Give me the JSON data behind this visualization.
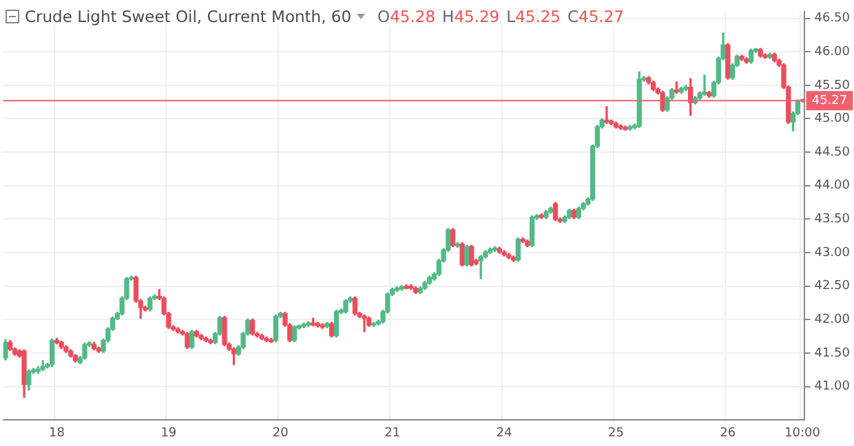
{
  "chart_data": {
    "type": "candlestick",
    "title": "Crude Light Sweet Oil, Current Month, 60",
    "annotations": [
      "O45.28",
      "H45.29",
      "L45.25",
      "C45.27"
    ],
    "categories": [
      null,
      null,
      null,
      null,
      null,
      null,
      null,
      null,
      null,
      null,
      null,
      "18",
      null,
      null,
      null,
      null,
      null,
      null,
      null,
      null,
      null,
      null,
      null,
      null,
      null,
      null,
      null,
      null,
      null,
      null,
      null,
      null,
      null,
      null,
      null,
      "19",
      null,
      null,
      null,
      null,
      null,
      null,
      null,
      null,
      null,
      null,
      null,
      null,
      null,
      null,
      null,
      null,
      null,
      null,
      null,
      null,
      null,
      null,
      null,
      "20",
      null,
      null,
      null,
      null,
      null,
      null,
      null,
      null,
      null,
      null,
      null,
      null,
      null,
      null,
      null,
      null,
      null,
      null,
      null,
      null,
      null,
      null,
      null,
      "21",
      null,
      null,
      null,
      null,
      null,
      null,
      null,
      null,
      null,
      null,
      null,
      null,
      null,
      null,
      null,
      null,
      null,
      null,
      null,
      null,
      null,
      null,
      null,
      "24",
      null,
      null,
      null,
      null,
      null,
      null,
      null,
      null,
      null,
      null,
      null,
      null,
      null,
      null,
      null,
      null,
      null,
      null,
      null,
      null,
      null,
      null,
      null,
      "25",
      null,
      null,
      null,
      null,
      null,
      null,
      null,
      null,
      null,
      null,
      null,
      null,
      null,
      null,
      null,
      null,
      null,
      null,
      null,
      null,
      null,
      null,
      null,
      "26",
      null,
      null,
      null,
      null,
      null,
      null,
      null,
      null,
      null,
      null,
      null,
      null,
      null,
      null,
      null,
      "10:00"
    ],
    "ohlc": [
      [
        41.43,
        41.7,
        41.4,
        41.66
      ],
      [
        41.66,
        41.69,
        41.54,
        41.56
      ],
      [
        41.56,
        41.58,
        41.47,
        41.49
      ],
      [
        41.53,
        41.55,
        41.44,
        41.46
      ],
      [
        41.53,
        41.55,
        40.84,
        41.03
      ],
      [
        41.03,
        41.25,
        40.95,
        41.23
      ],
      [
        41.22,
        41.27,
        41.2,
        41.25
      ],
      [
        41.23,
        41.3,
        41.2,
        41.26
      ],
      [
        41.26,
        41.39,
        41.24,
        41.3
      ],
      [
        41.3,
        41.35,
        41.28,
        41.33
      ],
      [
        41.33,
        41.71,
        41.3,
        41.69
      ],
      [
        41.69,
        41.72,
        41.64,
        41.66
      ],
      [
        41.66,
        41.68,
        41.57,
        41.59
      ],
      [
        41.59,
        41.61,
        41.51,
        41.53
      ],
      [
        41.53,
        41.55,
        41.44,
        41.46
      ],
      [
        41.46,
        41.48,
        41.37,
        41.39
      ],
      [
        41.36,
        41.45,
        41.34,
        41.43
      ],
      [
        41.43,
        41.65,
        41.41,
        41.63
      ],
      [
        41.62,
        41.67,
        41.6,
        41.65
      ],
      [
        41.63,
        41.66,
        41.55,
        41.57
      ],
      [
        41.57,
        41.59,
        41.51,
        41.53
      ],
      [
        41.53,
        41.71,
        41.51,
        41.69
      ],
      [
        41.69,
        41.88,
        41.67,
        41.86
      ],
      [
        41.86,
        42.04,
        41.84,
        42.02
      ],
      [
        42.02,
        42.11,
        42.0,
        42.09
      ],
      [
        42.09,
        42.34,
        42.07,
        42.32
      ],
      [
        42.32,
        42.63,
        42.3,
        42.61
      ],
      [
        42.61,
        42.65,
        42.59,
        42.63
      ],
      [
        42.63,
        42.65,
        42.26,
        42.28
      ],
      [
        42.28,
        42.3,
        42.02,
        42.18
      ],
      [
        42.18,
        42.2,
        42.13,
        42.15
      ],
      [
        42.15,
        42.34,
        42.13,
        42.32
      ],
      [
        42.32,
        42.37,
        42.3,
        42.35
      ],
      [
        42.35,
        42.45,
        42.3,
        42.32
      ],
      [
        42.32,
        42.34,
        42.07,
        42.09
      ],
      [
        42.09,
        42.11,
        41.87,
        41.89
      ],
      [
        41.89,
        41.91,
        41.84,
        41.86
      ],
      [
        41.86,
        41.88,
        41.8,
        41.82
      ],
      [
        41.82,
        41.84,
        41.77,
        41.79
      ],
      [
        41.79,
        41.81,
        41.57,
        41.59
      ],
      [
        41.59,
        41.84,
        41.57,
        41.82
      ],
      [
        41.82,
        41.84,
        41.74,
        41.76
      ],
      [
        41.76,
        41.78,
        41.7,
        41.72
      ],
      [
        41.72,
        41.74,
        41.67,
        41.69
      ],
      [
        41.69,
        41.71,
        41.64,
        41.66
      ],
      [
        41.66,
        41.81,
        41.64,
        41.79
      ],
      [
        41.79,
        42.05,
        41.77,
        42.03
      ],
      [
        42.03,
        42.05,
        41.61,
        41.63
      ],
      [
        41.63,
        41.65,
        41.54,
        41.56
      ],
      [
        41.56,
        41.58,
        41.33,
        41.49
      ],
      [
        41.49,
        41.61,
        41.47,
        41.59
      ],
      [
        41.59,
        41.81,
        41.57,
        41.79
      ],
      [
        41.79,
        42.01,
        41.77,
        41.99
      ],
      [
        41.99,
        42.01,
        41.77,
        41.79
      ],
      [
        41.79,
        41.81,
        41.74,
        41.76
      ],
      [
        41.76,
        41.78,
        41.7,
        41.72
      ],
      [
        41.72,
        41.74,
        41.67,
        41.69
      ],
      [
        41.7,
        41.72,
        41.66,
        41.67
      ],
      [
        41.69,
        42.07,
        41.67,
        42.05
      ],
      [
        42.05,
        42.11,
        42.03,
        42.09
      ],
      [
        42.09,
        42.11,
        41.9,
        41.92
      ],
      [
        41.92,
        41.94,
        41.67,
        41.69
      ],
      [
        41.69,
        41.91,
        41.67,
        41.89
      ],
      [
        41.88,
        41.92,
        41.86,
        41.91
      ],
      [
        41.9,
        41.95,
        41.88,
        41.93
      ],
      [
        41.92,
        41.97,
        41.9,
        41.95
      ],
      [
        41.95,
        42.02,
        41.91,
        41.92
      ],
      [
        41.94,
        41.96,
        41.89,
        41.91
      ],
      [
        41.92,
        41.94,
        41.87,
        41.89
      ],
      [
        41.9,
        41.96,
        41.88,
        41.94
      ],
      [
        41.94,
        41.96,
        41.74,
        41.76
      ],
      [
        41.76,
        42.14,
        41.74,
        42.12
      ],
      [
        42.11,
        42.16,
        42.09,
        42.14
      ],
      [
        42.12,
        42.3,
        42.1,
        42.28
      ],
      [
        42.28,
        42.34,
        42.26,
        42.32
      ],
      [
        42.32,
        42.34,
        42.07,
        42.09
      ],
      [
        42.09,
        42.11,
        42.03,
        42.05
      ],
      [
        42.05,
        42.07,
        41.82,
        42.02
      ],
      [
        42.02,
        42.04,
        41.9,
        41.92
      ],
      [
        41.92,
        41.96,
        41.9,
        41.94
      ],
      [
        41.94,
        41.99,
        41.92,
        41.97
      ],
      [
        41.97,
        42.14,
        41.95,
        42.12
      ],
      [
        42.12,
        42.4,
        42.1,
        42.38
      ],
      [
        42.38,
        42.47,
        42.36,
        42.45
      ],
      [
        42.44,
        42.49,
        42.42,
        42.47
      ],
      [
        42.46,
        42.51,
        42.44,
        42.49
      ],
      [
        42.5,
        42.52,
        42.46,
        42.47
      ],
      [
        42.5,
        42.52,
        42.45,
        42.47
      ],
      [
        42.47,
        42.49,
        42.39,
        42.41
      ],
      [
        42.41,
        42.49,
        42.39,
        42.47
      ],
      [
        42.47,
        42.57,
        42.45,
        42.55
      ],
      [
        42.55,
        42.65,
        42.53,
        42.63
      ],
      [
        42.61,
        42.7,
        42.59,
        42.68
      ],
      [
        42.68,
        42.9,
        42.66,
        42.88
      ],
      [
        42.88,
        43.06,
        42.86,
        43.04
      ],
      [
        43.04,
        43.36,
        43.02,
        43.34
      ],
      [
        43.34,
        43.36,
        43.09,
        43.11
      ],
      [
        43.1,
        43.15,
        43.08,
        43.13
      ],
      [
        43.13,
        43.15,
        42.8,
        42.82
      ],
      [
        42.82,
        43.11,
        42.8,
        43.09
      ],
      [
        43.09,
        43.11,
        42.8,
        42.82
      ],
      [
        42.88,
        42.9,
        42.82,
        42.84
      ],
      [
        42.88,
        42.96,
        42.61,
        42.94
      ],
      [
        42.94,
        43.03,
        42.92,
        43.01
      ],
      [
        43.01,
        43.07,
        42.99,
        43.05
      ],
      [
        43.04,
        43.09,
        43.02,
        43.07
      ],
      [
        43.06,
        43.08,
        42.99,
        43.01
      ],
      [
        43.01,
        43.03,
        42.95,
        42.97
      ],
      [
        42.97,
        42.99,
        42.91,
        42.93
      ],
      [
        42.93,
        42.95,
        42.87,
        42.89
      ],
      [
        42.89,
        43.22,
        42.87,
        43.2
      ],
      [
        43.2,
        43.22,
        43.15,
        43.17
      ],
      [
        43.17,
        43.19,
        43.09,
        43.11
      ],
      [
        43.11,
        43.55,
        43.09,
        43.53
      ],
      [
        43.52,
        43.57,
        43.5,
        43.55
      ],
      [
        43.56,
        43.58,
        43.51,
        43.53
      ],
      [
        43.53,
        43.63,
        43.51,
        43.61
      ],
      [
        43.61,
        43.68,
        43.59,
        43.66
      ],
      [
        43.73,
        43.75,
        43.48,
        43.5
      ],
      [
        43.5,
        43.52,
        43.45,
        43.47
      ],
      [
        43.47,
        43.55,
        43.45,
        43.53
      ],
      [
        43.53,
        43.65,
        43.51,
        43.63
      ],
      [
        43.63,
        43.65,
        43.51,
        43.53
      ],
      [
        43.53,
        43.68,
        43.51,
        43.66
      ],
      [
        43.66,
        43.75,
        43.64,
        43.73
      ],
      [
        43.73,
        43.82,
        43.71,
        43.8
      ],
      [
        43.8,
        44.61,
        43.78,
        44.59
      ],
      [
        44.59,
        44.9,
        44.57,
        44.88
      ],
      [
        44.88,
        45.0,
        44.86,
        44.98
      ],
      [
        44.98,
        45.18,
        44.93,
        44.95
      ],
      [
        44.96,
        44.98,
        44.91,
        44.93
      ],
      [
        44.93,
        44.95,
        44.86,
        44.88
      ],
      [
        44.89,
        44.91,
        44.84,
        44.86
      ],
      [
        44.87,
        44.89,
        44.83,
        44.84
      ],
      [
        44.85,
        44.9,
        44.83,
        44.88
      ],
      [
        44.87,
        44.92,
        44.85,
        44.9
      ],
      [
        44.89,
        45.7,
        44.87,
        45.59
      ],
      [
        45.58,
        45.63,
        45.56,
        45.61
      ],
      [
        45.61,
        45.63,
        45.52,
        45.54
      ],
      [
        45.54,
        45.56,
        45.42,
        45.44
      ],
      [
        45.44,
        45.46,
        45.37,
        45.39
      ],
      [
        45.39,
        45.41,
        45.11,
        45.13
      ],
      [
        45.13,
        45.33,
        45.11,
        45.31
      ],
      [
        45.31,
        45.45,
        45.29,
        45.43
      ],
      [
        45.43,
        45.55,
        45.38,
        45.4
      ],
      [
        45.4,
        45.47,
        45.38,
        45.45
      ],
      [
        45.44,
        45.5,
        45.42,
        45.47
      ],
      [
        45.47,
        45.6,
        45.05,
        45.24
      ],
      [
        45.24,
        45.33,
        45.22,
        45.31
      ],
      [
        45.31,
        45.4,
        45.29,
        45.38
      ],
      [
        45.37,
        45.65,
        45.35,
        45.4
      ],
      [
        45.39,
        45.41,
        45.32,
        45.34
      ],
      [
        45.34,
        45.56,
        45.32,
        45.54
      ],
      [
        45.54,
        45.92,
        45.52,
        45.9
      ],
      [
        45.9,
        46.28,
        45.88,
        46.1
      ],
      [
        46.1,
        46.12,
        45.59,
        45.61
      ],
      [
        45.61,
        45.82,
        45.59,
        45.8
      ],
      [
        45.8,
        45.95,
        45.78,
        45.93
      ],
      [
        45.93,
        45.95,
        45.87,
        45.89
      ],
      [
        45.89,
        45.91,
        45.83,
        45.85
      ],
      [
        45.85,
        46.04,
        45.83,
        46.02
      ],
      [
        46.01,
        46.05,
        45.99,
        46.04
      ],
      [
        46.03,
        46.05,
        45.92,
        45.94
      ],
      [
        45.95,
        45.97,
        45.9,
        45.92
      ],
      [
        45.92,
        45.98,
        45.9,
        45.96
      ],
      [
        45.96,
        45.98,
        45.85,
        45.87
      ],
      [
        45.87,
        45.89,
        45.78,
        45.8
      ],
      [
        45.8,
        45.82,
        45.45,
        45.47
      ],
      [
        45.47,
        45.49,
        44.93,
        44.95
      ],
      [
        44.95,
        45.1,
        44.82,
        45.08
      ],
      [
        45.08,
        45.28,
        45.06,
        45.26
      ],
      [
        45.28,
        45.29,
        45.25,
        45.27
      ]
    ],
    "colors": [
      "#53b987",
      "#eb4d5c",
      "#eb4d5c",
      "#eb4d5c",
      "#eb4d5c",
      "#53b987",
      "#53b987",
      "#53b987",
      "#53b987",
      "#53b987",
      "#53b987",
      "#eb4d5c",
      "#eb4d5c",
      "#eb4d5c",
      "#eb4d5c",
      "#eb4d5c",
      "#53b987",
      "#53b987",
      "#53b987",
      "#eb4d5c",
      "#eb4d5c",
      "#53b987",
      "#53b987",
      "#53b987",
      "#53b987",
      "#53b987",
      "#53b987",
      "#53b987",
      "#eb4d5c",
      "#eb4d5c",
      "#eb4d5c",
      "#53b987",
      "#53b987",
      "#eb4d5c",
      "#eb4d5c",
      "#eb4d5c",
      "#eb4d5c",
      "#eb4d5c",
      "#eb4d5c",
      "#eb4d5c",
      "#53b987",
      "#eb4d5c",
      "#eb4d5c",
      "#eb4d5c",
      "#eb4d5c",
      "#53b987",
      "#53b987",
      "#eb4d5c",
      "#eb4d5c",
      "#eb4d5c",
      "#53b987",
      "#53b987",
      "#53b987",
      "#eb4d5c",
      "#eb4d5c",
      "#eb4d5c",
      "#eb4d5c",
      "#eb4d5c",
      "#53b987",
      "#53b987",
      "#eb4d5c",
      "#eb4d5c",
      "#53b987",
      "#53b987",
      "#53b987",
      "#53b987",
      "#eb4d5c",
      "#eb4d5c",
      "#eb4d5c",
      "#53b987",
      "#eb4d5c",
      "#53b987",
      "#53b987",
      "#53b987",
      "#53b987",
      "#eb4d5c",
      "#eb4d5c",
      "#eb4d5c",
      "#eb4d5c",
      "#53b987",
      "#53b987",
      "#53b987",
      "#53b987",
      "#53b987",
      "#53b987",
      "#53b987",
      "#eb4d5c",
      "#eb4d5c",
      "#eb4d5c",
      "#53b987",
      "#53b987",
      "#53b987",
      "#53b987",
      "#53b987",
      "#53b987",
      "#53b987",
      "#eb4d5c",
      "#53b987",
      "#eb4d5c",
      "#53b987",
      "#eb4d5c",
      "#eb4d5c",
      "#53b987",
      "#53b987",
      "#53b987",
      "#53b987",
      "#eb4d5c",
      "#eb4d5c",
      "#eb4d5c",
      "#eb4d5c",
      "#53b987",
      "#eb4d5c",
      "#eb4d5c",
      "#53b987",
      "#53b987",
      "#eb4d5c",
      "#53b987",
      "#53b987",
      "#eb4d5c",
      "#eb4d5c",
      "#53b987",
      "#53b987",
      "#eb4d5c",
      "#53b987",
      "#53b987",
      "#53b987",
      "#53b987",
      "#53b987",
      "#53b987",
      "#eb4d5c",
      "#eb4d5c",
      "#eb4d5c",
      "#eb4d5c",
      "#eb4d5c",
      "#53b987",
      "#53b987",
      "#53b987",
      "#53b987",
      "#eb4d5c",
      "#eb4d5c",
      "#eb4d5c",
      "#eb4d5c",
      "#53b987",
      "#53b987",
      "#eb4d5c",
      "#53b987",
      "#53b987",
      "#eb4d5c",
      "#53b987",
      "#53b987",
      "#53b987",
      "#eb4d5c",
      "#53b987",
      "#53b987",
      "#53b987",
      "#eb4d5c",
      "#53b987",
      "#53b987",
      "#eb4d5c",
      "#eb4d5c",
      "#53b987",
      "#53b987",
      "#eb4d5c",
      "#eb4d5c",
      "#53b987",
      "#eb4d5c",
      "#eb4d5c",
      "#eb4d5c",
      "#eb4d5c",
      "#53b987",
      "#53b987",
      "#eb4d5c"
    ],
    "ylim": [
      40.5,
      46.6
    ],
    "yticks": [
      {
        "value": 41,
        "label": "41.00"
      },
      {
        "value": 41.5,
        "label": "41.50"
      },
      {
        "value": 42,
        "label": "42.00"
      },
      {
        "value": 42.5,
        "label": "42.50"
      },
      {
        "value": 43,
        "label": "43.00"
      },
      {
        "value": 43.5,
        "label": "43.50"
      },
      {
        "value": 44,
        "label": "44.00"
      },
      {
        "value": 44.5,
        "label": "44.50"
      },
      {
        "value": 45,
        "label": "45.00"
      },
      {
        "value": 45.5,
        "label": "45.50"
      },
      {
        "value": 46,
        "label": "46.00"
      },
      {
        "value": 46.5,
        "label": "46.50"
      }
    ],
    "grid": true,
    "ref_lines": [
      {
        "axis": "y",
        "value": 45.27,
        "label": "45.27",
        "color": "#f0616d"
      }
    ]
  }
}
